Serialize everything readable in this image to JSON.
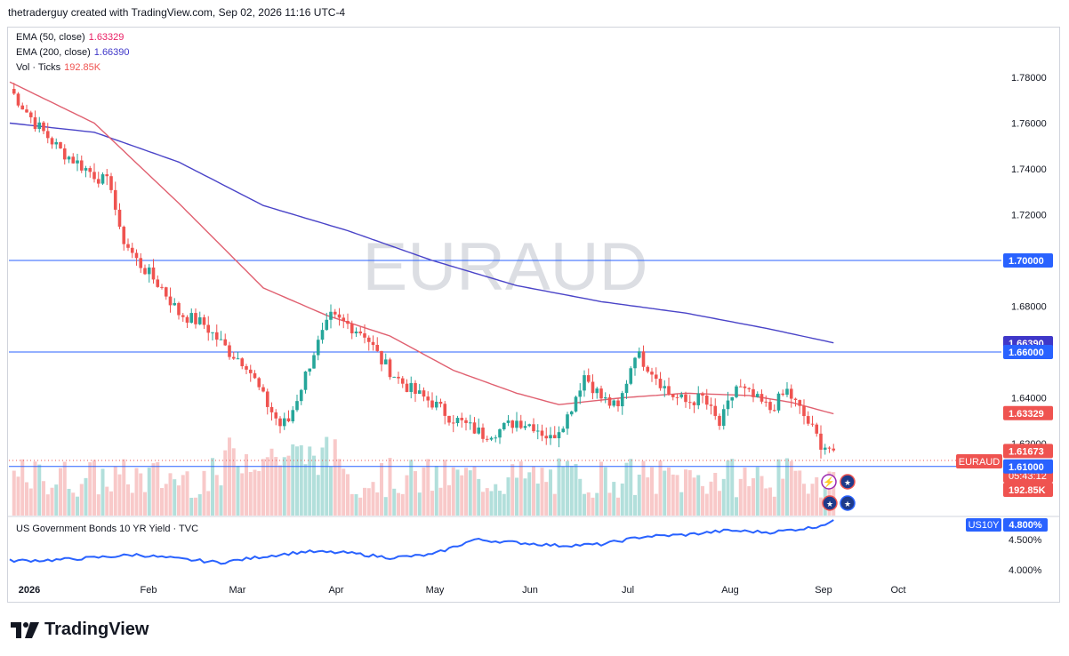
{
  "header": {
    "attribution": "thetraderguy created with TradingView.com, Sep 02, 2026 11:16 UTC-4"
  },
  "watermark": "EURAUD",
  "indicators": [
    {
      "label": "EMA (50, close)",
      "value": "1.63329",
      "color": "#e91e63"
    },
    {
      "label": "EMA (200, close)",
      "value": "1.66390",
      "color": "#3f37c9"
    },
    {
      "label": "Vol · Ticks",
      "value": "192.85K",
      "color": "#ef5350"
    }
  ],
  "colors": {
    "up": "#26a69a",
    "down": "#ef5350",
    "ema50": "#e06070",
    "ema200": "#4a44c8",
    "hline": "#2962ff",
    "us10y": "#2962ff",
    "up_vol": "#b2dfdb",
    "down_vol": "#f8c9c9"
  },
  "price_axis": {
    "ticks": [
      "1.78000",
      "1.76000",
      "1.74000",
      "1.72000",
      "1.68000",
      "1.64000",
      "1.62000"
    ]
  },
  "price_labels": [
    {
      "text": "1.70000",
      "kind": "hline"
    },
    {
      "text": "1.66390",
      "kind": "ema200"
    },
    {
      "text": "1.66000",
      "kind": "hline"
    },
    {
      "text": "1.63329",
      "kind": "ema50"
    },
    {
      "text": "1.61673",
      "kind": "last"
    },
    {
      "text": "05:43:12",
      "kind": "countdown"
    },
    {
      "text": "192.85K",
      "kind": "volume"
    },
    {
      "text": "1.61000",
      "kind": "hline"
    }
  ],
  "symbol_tag": "EURAUD",
  "horizontal_lines": [
    1.7,
    1.66,
    1.61
  ],
  "sub_pane": {
    "title": "US Government Bonds 10 YR Yield · TVC",
    "tag": "US10Y",
    "value": "4.800%",
    "ticks": [
      "4.500%",
      "4.000%"
    ]
  },
  "time_axis": [
    "2026",
    "Feb",
    "Mar",
    "Apr",
    "May",
    "Jun",
    "Jul",
    "Aug",
    "Sep",
    "Oct"
  ],
  "brand": "TradingView",
  "chart_data": {
    "type": "candlestick",
    "symbol": "EURAUD",
    "ylim": [
      1.605,
      1.79
    ],
    "anchors": [
      [
        0,
        1.775
      ],
      [
        6,
        1.76
      ],
      [
        12,
        1.748
      ],
      [
        18,
        1.74
      ],
      [
        22,
        1.735
      ],
      [
        24,
        1.733
      ],
      [
        26,
        1.712
      ],
      [
        30,
        1.7
      ],
      [
        36,
        1.688
      ],
      [
        40,
        1.677
      ],
      [
        46,
        1.672
      ],
      [
        52,
        1.66
      ],
      [
        56,
        1.655
      ],
      [
        60,
        1.64
      ],
      [
        64,
        1.628
      ],
      [
        66,
        1.63
      ],
      [
        72,
        1.66
      ],
      [
        76,
        1.675
      ],
      [
        80,
        1.672
      ],
      [
        84,
        1.668
      ],
      [
        88,
        1.656
      ],
      [
        92,
        1.648
      ],
      [
        96,
        1.642
      ],
      [
        100,
        1.638
      ],
      [
        104,
        1.632
      ],
      [
        108,
        1.628
      ],
      [
        112,
        1.624
      ],
      [
        116,
        1.626
      ],
      [
        120,
        1.63
      ],
      [
        124,
        1.628
      ],
      [
        128,
        1.622
      ],
      [
        132,
        1.632
      ],
      [
        136,
        1.65
      ],
      [
        140,
        1.64
      ],
      [
        144,
        1.635
      ],
      [
        148,
        1.66
      ],
      [
        152,
        1.652
      ],
      [
        156,
        1.642
      ],
      [
        160,
        1.638
      ],
      [
        164,
        1.64
      ],
      [
        168,
        1.628
      ],
      [
        172,
        1.645
      ],
      [
        176,
        1.64
      ],
      [
        180,
        1.635
      ],
      [
        184,
        1.643
      ],
      [
        188,
        1.632
      ],
      [
        192,
        1.62
      ],
      [
        195,
        1.617
      ]
    ],
    "ema50": [
      [
        0,
        1.778
      ],
      [
        20,
        1.76
      ],
      [
        40,
        1.725
      ],
      [
        60,
        1.688
      ],
      [
        75,
        1.676
      ],
      [
        90,
        1.667
      ],
      [
        105,
        1.652
      ],
      [
        120,
        1.642
      ],
      [
        130,
        1.637
      ],
      [
        145,
        1.64
      ],
      [
        160,
        1.642
      ],
      [
        175,
        1.641
      ],
      [
        185,
        1.638
      ],
      [
        195,
        1.633
      ]
    ],
    "ema200": [
      [
        0,
        1.76
      ],
      [
        20,
        1.756
      ],
      [
        40,
        1.743
      ],
      [
        60,
        1.724
      ],
      [
        80,
        1.713
      ],
      [
        100,
        1.7
      ],
      [
        120,
        1.689
      ],
      [
        140,
        1.682
      ],
      [
        160,
        1.677
      ],
      [
        180,
        1.67
      ],
      [
        195,
        1.664
      ]
    ],
    "us10y": [
      [
        0,
        4.15
      ],
      [
        10,
        4.16
      ],
      [
        20,
        4.2
      ],
      [
        30,
        4.25
      ],
      [
        40,
        4.18
      ],
      [
        50,
        4.12
      ],
      [
        60,
        4.22
      ],
      [
        70,
        4.3
      ],
      [
        80,
        4.28
      ],
      [
        90,
        4.2
      ],
      [
        100,
        4.25
      ],
      [
        110,
        4.5
      ],
      [
        120,
        4.45
      ],
      [
        130,
        4.4
      ],
      [
        140,
        4.42
      ],
      [
        150,
        4.55
      ],
      [
        160,
        4.58
      ],
      [
        170,
        4.65
      ],
      [
        180,
        4.62
      ],
      [
        190,
        4.7
      ],
      [
        195,
        4.8
      ]
    ]
  }
}
